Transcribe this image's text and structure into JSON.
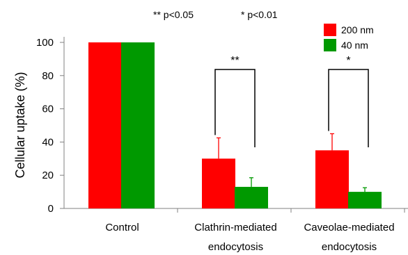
{
  "chart_data": {
    "type": "bar",
    "categories": [
      [
        "Control"
      ],
      [
        "Clathrin-mediated",
        "endocytosis"
      ],
      [
        "Caveolae-mediated",
        "endocytosis"
      ]
    ],
    "series": [
      {
        "name": "200 nm",
        "color": "#ff0000",
        "values": [
          100,
          30,
          35
        ],
        "errors": [
          0,
          12.5,
          10
        ]
      },
      {
        "name": "40 nm",
        "color": "#009900",
        "values": [
          100,
          13,
          10
        ],
        "errors": [
          0,
          5.5,
          2.5
        ]
      }
    ],
    "ylabel": "Cellular uptake (%)",
    "ylim": [
      0,
      100
    ],
    "yticks": [
      0,
      20,
      40,
      60,
      80,
      100
    ],
    "legend": "top-right",
    "grid": false,
    "annotations": {
      "notes": [
        "** p<0.05",
        "* p<0.01"
      ],
      "significance": [
        {
          "category": 1,
          "label": "**"
        },
        {
          "category": 2,
          "label": "*"
        }
      ]
    }
  }
}
